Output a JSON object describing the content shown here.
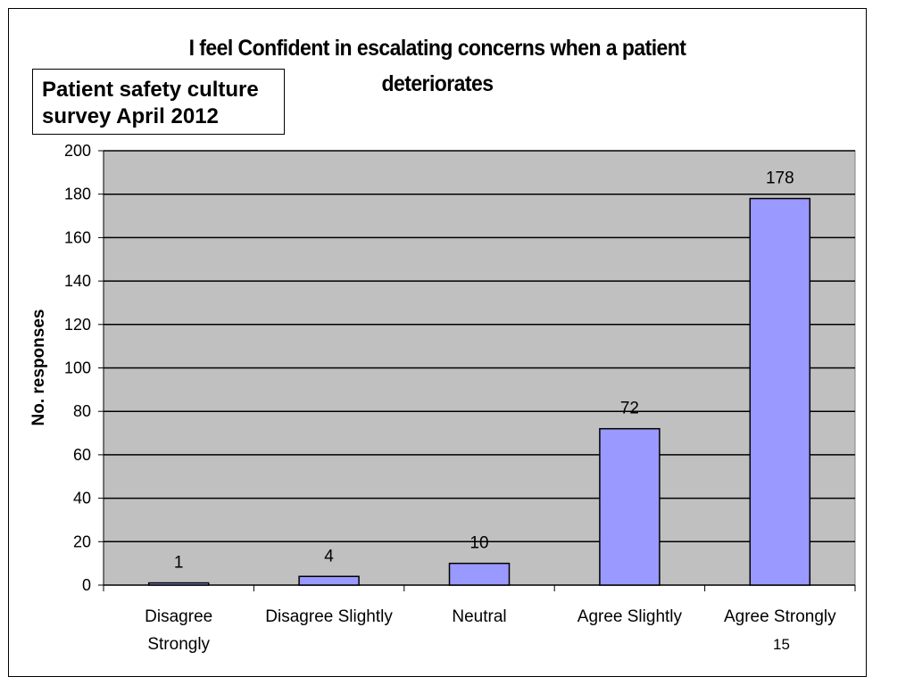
{
  "slide": {
    "note_lines": [
      "Patient safety culture",
      "survey April 2012"
    ],
    "page_number": "15"
  },
  "chart_data": {
    "type": "bar",
    "title_lines": [
      "I feel Confident in escalating concerns when a patient",
      "deteriorates"
    ],
    "categories": [
      [
        "Disagree",
        "Strongly"
      ],
      [
        "Disagree Slightly"
      ],
      [
        "Neutral"
      ],
      [
        "Agree Slightly"
      ],
      [
        "Agree Strongly"
      ]
    ],
    "values": [
      1,
      4,
      10,
      72,
      178
    ],
    "data_labels": [
      "1",
      "4",
      "10",
      "72",
      "178"
    ],
    "xlabel": "",
    "ylabel": "No. responses",
    "ylim": [
      0,
      200
    ],
    "yticks": [
      0,
      20,
      40,
      60,
      80,
      100,
      120,
      140,
      160,
      180,
      200
    ],
    "grid": true,
    "legend": "none",
    "colors": {
      "bar_fill": "#9999ff",
      "plot_background": "#c0c0c0",
      "gridline": "#000000"
    }
  }
}
